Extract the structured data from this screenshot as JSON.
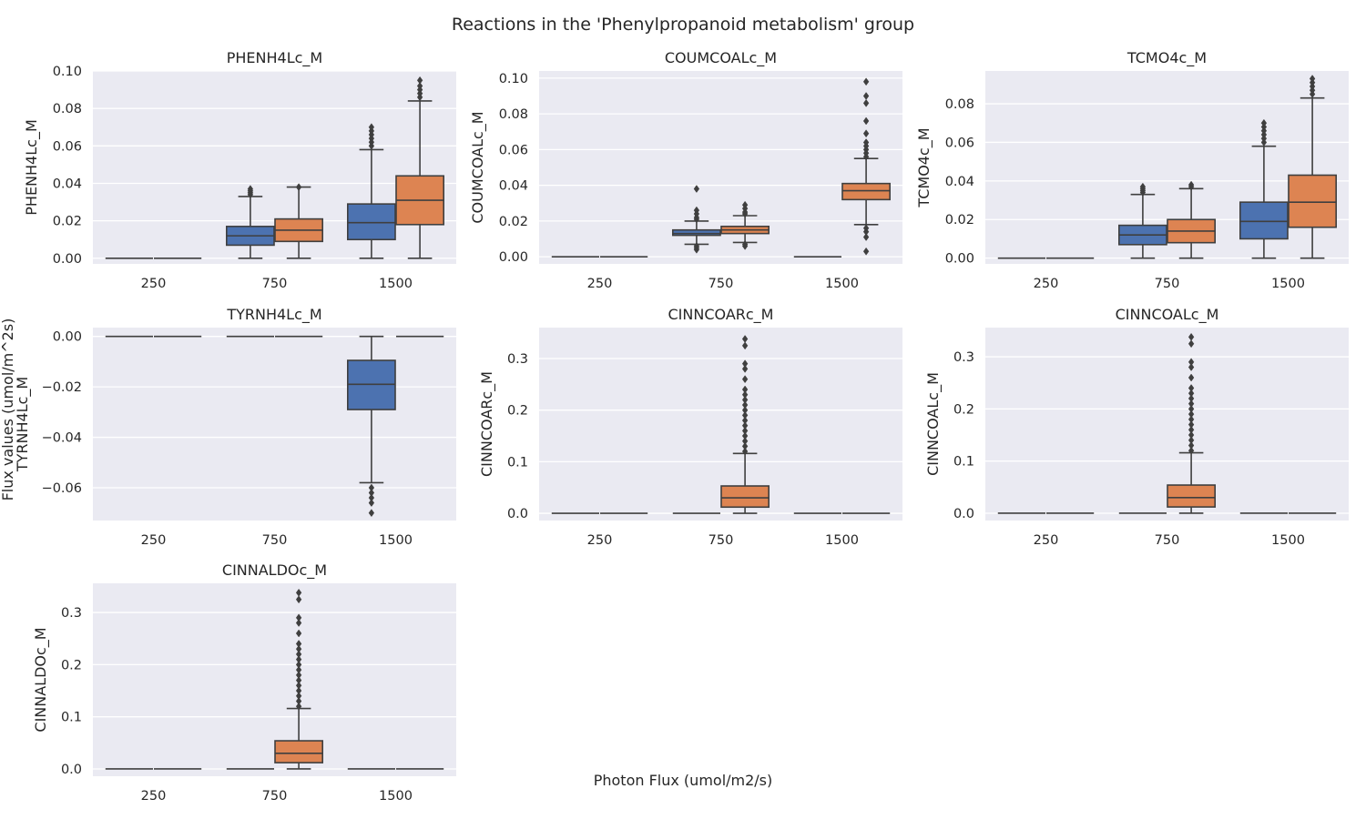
{
  "figure": {
    "title": "Reactions in the 'Phenylpropanoid metabolism' group",
    "supxlabel": "Photon Flux (umol/m2/s)",
    "supylabel": "Flux values (umol/m^2s)"
  },
  "colors": {
    "series_a": "#4c72b0",
    "series_b": "#dd8452",
    "panel_bg": "#eaeaf2",
    "grid": "#ffffff",
    "line": "#3f3f3f"
  },
  "chart_data": [
    {
      "type": "box",
      "title": "PHENH4Lc_M",
      "ylabel": "PHENH4Lc_M",
      "categories": [
        "250",
        "750",
        "1500"
      ],
      "ylim": [
        -0.003,
        0.1
      ],
      "yticks": [
        "0.00",
        "0.02",
        "0.04",
        "0.06",
        "0.08",
        "0.10"
      ],
      "ytick_values": [
        0,
        0.02,
        0.04,
        0.06,
        0.08,
        0.1
      ],
      "boxes": [
        {
          "category": "250",
          "series": 0,
          "q1": 0,
          "median": 0,
          "q3": 0,
          "whislo": 0,
          "whishi": 0,
          "fliers": []
        },
        {
          "category": "250",
          "series": 1,
          "q1": 0,
          "median": 0,
          "q3": 0,
          "whislo": 0,
          "whishi": 0,
          "fliers": []
        },
        {
          "category": "750",
          "series": 0,
          "q1": 0.007,
          "median": 0.012,
          "q3": 0.017,
          "whislo": 0,
          "whishi": 0.033,
          "fliers": [
            0.034,
            0.035,
            0.036,
            0.037
          ]
        },
        {
          "category": "750",
          "series": 1,
          "q1": 0.009,
          "median": 0.015,
          "q3": 0.021,
          "whislo": 0,
          "whishi": 0.038,
          "fliers": [
            0.038
          ]
        },
        {
          "category": "1500",
          "series": 0,
          "q1": 0.01,
          "median": 0.019,
          "q3": 0.029,
          "whislo": 0,
          "whishi": 0.058,
          "fliers": [
            0.06,
            0.062,
            0.064,
            0.066,
            0.068,
            0.07
          ]
        },
        {
          "category": "1500",
          "series": 1,
          "q1": 0.018,
          "median": 0.031,
          "q3": 0.044,
          "whislo": 0,
          "whishi": 0.084,
          "fliers": [
            0.086,
            0.088,
            0.09,
            0.092,
            0.095
          ]
        }
      ]
    },
    {
      "type": "box",
      "title": "COUMCOALc_M",
      "ylabel": "COUMCOALc_M",
      "categories": [
        "250",
        "750",
        "1500"
      ],
      "ylim": [
        -0.004,
        0.104
      ],
      "yticks": [
        "0.00",
        "0.02",
        "0.04",
        "0.06",
        "0.08",
        "0.10"
      ],
      "ytick_values": [
        0,
        0.02,
        0.04,
        0.06,
        0.08,
        0.1
      ],
      "boxes": [
        {
          "category": "250",
          "series": 0,
          "q1": 0,
          "median": 0,
          "q3": 0,
          "whislo": 0,
          "whishi": 0,
          "fliers": []
        },
        {
          "category": "250",
          "series": 1,
          "q1": 0,
          "median": 0,
          "q3": 0,
          "whislo": 0,
          "whishi": 0,
          "fliers": []
        },
        {
          "category": "750",
          "series": 0,
          "q1": 0.012,
          "median": 0.013,
          "q3": 0.015,
          "whislo": 0.007,
          "whishi": 0.02,
          "fliers": [
            0.004,
            0.005,
            0.006,
            0.021,
            0.022,
            0.024,
            0.026,
            0.038
          ]
        },
        {
          "category": "750",
          "series": 1,
          "q1": 0.013,
          "median": 0.015,
          "q3": 0.017,
          "whislo": 0.008,
          "whishi": 0.023,
          "fliers": [
            0.006,
            0.007,
            0.024,
            0.025,
            0.027,
            0.029
          ]
        },
        {
          "category": "1500",
          "series": 0,
          "q1": 0,
          "median": 0,
          "q3": 0,
          "whislo": 0,
          "whishi": 0,
          "fliers": []
        },
        {
          "category": "1500",
          "series": 1,
          "q1": 0.032,
          "median": 0.037,
          "q3": 0.041,
          "whislo": 0.018,
          "whishi": 0.055,
          "fliers": [
            0.003,
            0.011,
            0.014,
            0.016,
            0.056,
            0.058,
            0.06,
            0.062,
            0.064,
            0.069,
            0.076,
            0.086,
            0.09,
            0.098
          ]
        }
      ]
    },
    {
      "type": "box",
      "title": "TCMO4c_M",
      "ylabel": "TCMO4c_M",
      "categories": [
        "250",
        "750",
        "1500"
      ],
      "ylim": [
        -0.003,
        0.097
      ],
      "yticks": [
        "0.00",
        "0.02",
        "0.04",
        "0.06",
        "0.08"
      ],
      "ytick_values": [
        0,
        0.02,
        0.04,
        0.06,
        0.08
      ],
      "boxes": [
        {
          "category": "250",
          "series": 0,
          "q1": 0,
          "median": 0,
          "q3": 0,
          "whislo": 0,
          "whishi": 0,
          "fliers": []
        },
        {
          "category": "250",
          "series": 1,
          "q1": 0,
          "median": 0,
          "q3": 0,
          "whislo": 0,
          "whishi": 0,
          "fliers": []
        },
        {
          "category": "750",
          "series": 0,
          "q1": 0.007,
          "median": 0.012,
          "q3": 0.017,
          "whislo": 0,
          "whishi": 0.033,
          "fliers": [
            0.034,
            0.035,
            0.036,
            0.037
          ]
        },
        {
          "category": "750",
          "series": 1,
          "q1": 0.008,
          "median": 0.014,
          "q3": 0.02,
          "whislo": 0,
          "whishi": 0.036,
          "fliers": [
            0.037,
            0.038
          ]
        },
        {
          "category": "1500",
          "series": 0,
          "q1": 0.01,
          "median": 0.019,
          "q3": 0.029,
          "whislo": 0,
          "whishi": 0.058,
          "fliers": [
            0.06,
            0.062,
            0.064,
            0.066,
            0.068,
            0.07
          ]
        },
        {
          "category": "1500",
          "series": 1,
          "q1": 0.016,
          "median": 0.029,
          "q3": 0.043,
          "whislo": 0,
          "whishi": 0.083,
          "fliers": [
            0.085,
            0.087,
            0.089,
            0.091,
            0.093
          ]
        }
      ]
    },
    {
      "type": "box",
      "title": "TYRNH4Lc_M",
      "ylabel": "TYRNH4Lc_M",
      "categories": [
        "250",
        "750",
        "1500"
      ],
      "ylim": [
        -0.073,
        0.0035
      ],
      "yticks": [
        "0.00",
        "−0.02",
        "−0.04",
        "−0.06"
      ],
      "ytick_values": [
        0,
        -0.02,
        -0.04,
        -0.06
      ],
      "boxes": [
        {
          "category": "250",
          "series": 0,
          "q1": 0,
          "median": 0,
          "q3": 0,
          "whislo": 0,
          "whishi": 0,
          "fliers": []
        },
        {
          "category": "250",
          "series": 1,
          "q1": 0,
          "median": 0,
          "q3": 0,
          "whislo": 0,
          "whishi": 0,
          "fliers": []
        },
        {
          "category": "750",
          "series": 0,
          "q1": 0,
          "median": 0,
          "q3": 0,
          "whislo": 0,
          "whishi": 0,
          "fliers": []
        },
        {
          "category": "750",
          "series": 1,
          "q1": 0,
          "median": 0,
          "q3": 0,
          "whislo": 0,
          "whishi": 0,
          "fliers": []
        },
        {
          "category": "1500",
          "series": 0,
          "q1": -0.029,
          "median": -0.019,
          "q3": -0.0095,
          "whislo": -0.058,
          "whishi": 0,
          "fliers": [
            -0.06,
            -0.062,
            -0.064,
            -0.066,
            -0.07
          ]
        },
        {
          "category": "1500",
          "series": 1,
          "q1": 0,
          "median": 0,
          "q3": 0,
          "whislo": 0,
          "whishi": 0,
          "fliers": []
        }
      ]
    },
    {
      "type": "box",
      "title": "CINNCOARc_M",
      "ylabel": "CINNCOARc_M",
      "categories": [
        "250",
        "750",
        "1500"
      ],
      "ylim": [
        -0.014,
        0.36
      ],
      "yticks": [
        "0.0",
        "0.1",
        "0.2",
        "0.3"
      ],
      "ytick_values": [
        0,
        0.1,
        0.2,
        0.3
      ],
      "boxes": [
        {
          "category": "250",
          "series": 0,
          "q1": 0,
          "median": 0,
          "q3": 0,
          "whislo": 0,
          "whishi": 0,
          "fliers": []
        },
        {
          "category": "250",
          "series": 1,
          "q1": 0,
          "median": 0,
          "q3": 0,
          "whislo": 0,
          "whishi": 0,
          "fliers": []
        },
        {
          "category": "750",
          "series": 0,
          "q1": 0,
          "median": 0,
          "q3": 0,
          "whislo": 0,
          "whishi": 0,
          "fliers": []
        },
        {
          "category": "750",
          "series": 1,
          "q1": 0.012,
          "median": 0.03,
          "q3": 0.053,
          "whislo": 0,
          "whishi": 0.116,
          "fliers": [
            0.12,
            0.13,
            0.14,
            0.15,
            0.16,
            0.17,
            0.18,
            0.19,
            0.2,
            0.21,
            0.22,
            0.23,
            0.24,
            0.26,
            0.28,
            0.29,
            0.325,
            0.338
          ]
        },
        {
          "category": "1500",
          "series": 0,
          "q1": 0,
          "median": 0,
          "q3": 0,
          "whislo": 0,
          "whishi": 0,
          "fliers": []
        },
        {
          "category": "1500",
          "series": 1,
          "q1": 0,
          "median": 0,
          "q3": 0,
          "whislo": 0,
          "whishi": 0,
          "fliers": []
        }
      ]
    },
    {
      "type": "box",
      "title": "CINNCOALc_M",
      "ylabel": "CINNCOALc_M",
      "categories": [
        "250",
        "750",
        "1500"
      ],
      "ylim": [
        -0.014,
        0.356
      ],
      "yticks": [
        "0.0",
        "0.1",
        "0.2",
        "0.3"
      ],
      "ytick_values": [
        0,
        0.1,
        0.2,
        0.3
      ],
      "boxes": [
        {
          "category": "250",
          "series": 0,
          "q1": 0,
          "median": 0,
          "q3": 0,
          "whislo": 0,
          "whishi": 0,
          "fliers": []
        },
        {
          "category": "250",
          "series": 1,
          "q1": 0,
          "median": 0,
          "q3": 0,
          "whislo": 0,
          "whishi": 0,
          "fliers": []
        },
        {
          "category": "750",
          "series": 0,
          "q1": 0,
          "median": 0,
          "q3": 0,
          "whislo": 0,
          "whishi": 0,
          "fliers": []
        },
        {
          "category": "750",
          "series": 1,
          "q1": 0.012,
          "median": 0.03,
          "q3": 0.054,
          "whislo": 0,
          "whishi": 0.116,
          "fliers": [
            0.12,
            0.13,
            0.14,
            0.15,
            0.16,
            0.17,
            0.18,
            0.19,
            0.2,
            0.21,
            0.22,
            0.23,
            0.24,
            0.26,
            0.28,
            0.29,
            0.325,
            0.338
          ]
        },
        {
          "category": "1500",
          "series": 0,
          "q1": 0,
          "median": 0,
          "q3": 0,
          "whislo": 0,
          "whishi": 0,
          "fliers": []
        },
        {
          "category": "1500",
          "series": 1,
          "q1": 0,
          "median": 0,
          "q3": 0,
          "whislo": 0,
          "whishi": 0,
          "fliers": []
        }
      ]
    },
    {
      "type": "box",
      "title": "CINNALDOc_M",
      "ylabel": "CINNALDOc_M",
      "categories": [
        "250",
        "750",
        "1500"
      ],
      "ylim": [
        -0.014,
        0.356
      ],
      "yticks": [
        "0.0",
        "0.1",
        "0.2",
        "0.3"
      ],
      "ytick_values": [
        0,
        0.1,
        0.2,
        0.3
      ],
      "boxes": [
        {
          "category": "250",
          "series": 0,
          "q1": 0,
          "median": 0,
          "q3": 0,
          "whislo": 0,
          "whishi": 0,
          "fliers": []
        },
        {
          "category": "250",
          "series": 1,
          "q1": 0,
          "median": 0,
          "q3": 0,
          "whislo": 0,
          "whishi": 0,
          "fliers": []
        },
        {
          "category": "750",
          "series": 0,
          "q1": 0,
          "median": 0,
          "q3": 0,
          "whislo": 0,
          "whishi": 0,
          "fliers": []
        },
        {
          "category": "750",
          "series": 1,
          "q1": 0.012,
          "median": 0.03,
          "q3": 0.054,
          "whislo": 0,
          "whishi": 0.116,
          "fliers": [
            0.12,
            0.13,
            0.14,
            0.15,
            0.16,
            0.17,
            0.18,
            0.19,
            0.2,
            0.21,
            0.22,
            0.23,
            0.24,
            0.26,
            0.28,
            0.29,
            0.325,
            0.338
          ]
        },
        {
          "category": "1500",
          "series": 0,
          "q1": 0,
          "median": 0,
          "q3": 0,
          "whislo": 0,
          "whishi": 0,
          "fliers": []
        },
        {
          "category": "1500",
          "series": 1,
          "q1": 0,
          "median": 0,
          "q3": 0,
          "whislo": 0,
          "whishi": 0,
          "fliers": []
        }
      ]
    }
  ]
}
